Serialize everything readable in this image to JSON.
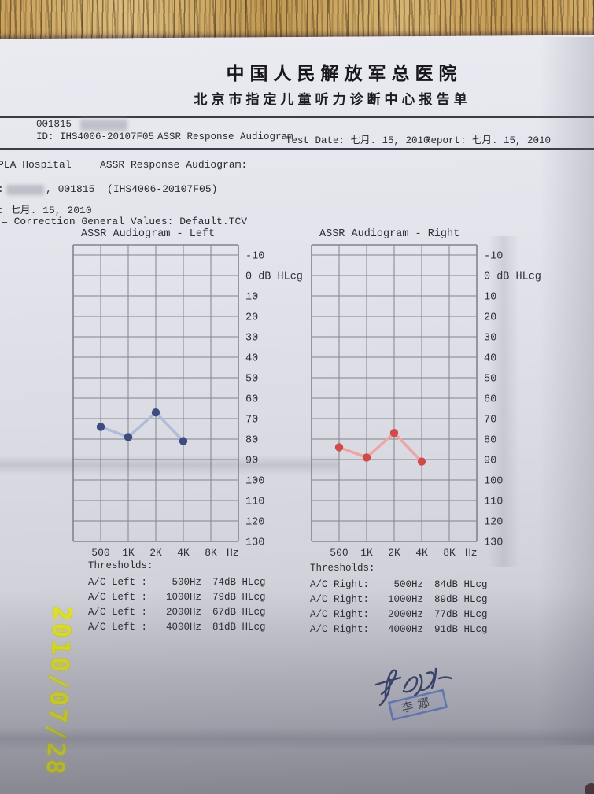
{
  "photo": {
    "camera_date_stamp": "2010/07/28"
  },
  "header": {
    "hospital_name_cn": "中国人民解放军总医院",
    "subtitle_cn": "北京市指定儿童听力诊断中心报告单"
  },
  "meta_bar": {
    "patient_number": "001815",
    "device_id": "ID: IHS4006-20107F05",
    "report_type": "ASSR Response Audiogram",
    "test_date": "Test Date: 七月. 15, 2010",
    "report_date": "Report: 七月. 15, 2010"
  },
  "info": {
    "line1_left": "PLA Hospital",
    "line1_right": "ASSR Response Audiogram:",
    "line2_prefix": ":",
    "line2_rest": ", 001815  (IHS4006-20107F05)",
    "line3": ": 七月. 15, 2010",
    "line4": "= Correction General Values: Default.TCV"
  },
  "chart_data": [
    {
      "type": "line",
      "title": "ASSR Audiogram - Left",
      "ear": "Left",
      "categories": [
        "500",
        "1K",
        "2K",
        "4K",
        "8K"
      ],
      "x_unit": "Hz",
      "values": [
        74,
        79,
        67,
        81
      ],
      "values_at": [
        "500",
        "1K",
        "2K",
        "4K"
      ],
      "ylim": [
        -10,
        130
      ],
      "y_step": 10,
      "y_zero_label": "0 dB HLcg",
      "ylabel": "dB HLcg",
      "grid": true,
      "point_color": "#3c4c80",
      "line_color": "#b0bdd8"
    },
    {
      "type": "line",
      "title": "ASSR Audiogram - Right",
      "ear": "Right",
      "categories": [
        "500",
        "1K",
        "2K",
        "4K",
        "8K"
      ],
      "x_unit": "Hz",
      "values": [
        84,
        89,
        77,
        91
      ],
      "values_at": [
        "500",
        "1K",
        "2K",
        "4K"
      ],
      "ylim": [
        -10,
        130
      ],
      "y_step": 10,
      "y_zero_label": "0 dB HLcg",
      "ylabel": "dB HLcg",
      "grid": true,
      "point_color": "#cf4a4a",
      "line_color": "#eda6a6"
    }
  ],
  "thresholds_left": {
    "title": "Thresholds:",
    "rows": [
      {
        "label": "A/C Left :",
        "freq": "500Hz",
        "value": "74dB HLcg"
      },
      {
        "label": "A/C Left :",
        "freq": "1000Hz",
        "value": "79dB HLcg"
      },
      {
        "label": "A/C Left :",
        "freq": "2000Hz",
        "value": "67dB HLcg"
      },
      {
        "label": "A/C Left :",
        "freq": "4000Hz",
        "value": "81dB HLcg"
      }
    ]
  },
  "thresholds_right": {
    "title": "Thresholds:",
    "rows": [
      {
        "label": "A/C Right:",
        "freq": "500Hz",
        "value": "84dB HLcg"
      },
      {
        "label": "A/C Right:",
        "freq": "1000Hz",
        "value": "89dB HLcg"
      },
      {
        "label": "A/C Right:",
        "freq": "2000Hz",
        "value": "77dB HLcg"
      },
      {
        "label": "A/C Right:",
        "freq": "4000Hz",
        "value": "91dB HLcg"
      }
    ]
  },
  "stamp": {
    "name_cn": "李娜"
  }
}
